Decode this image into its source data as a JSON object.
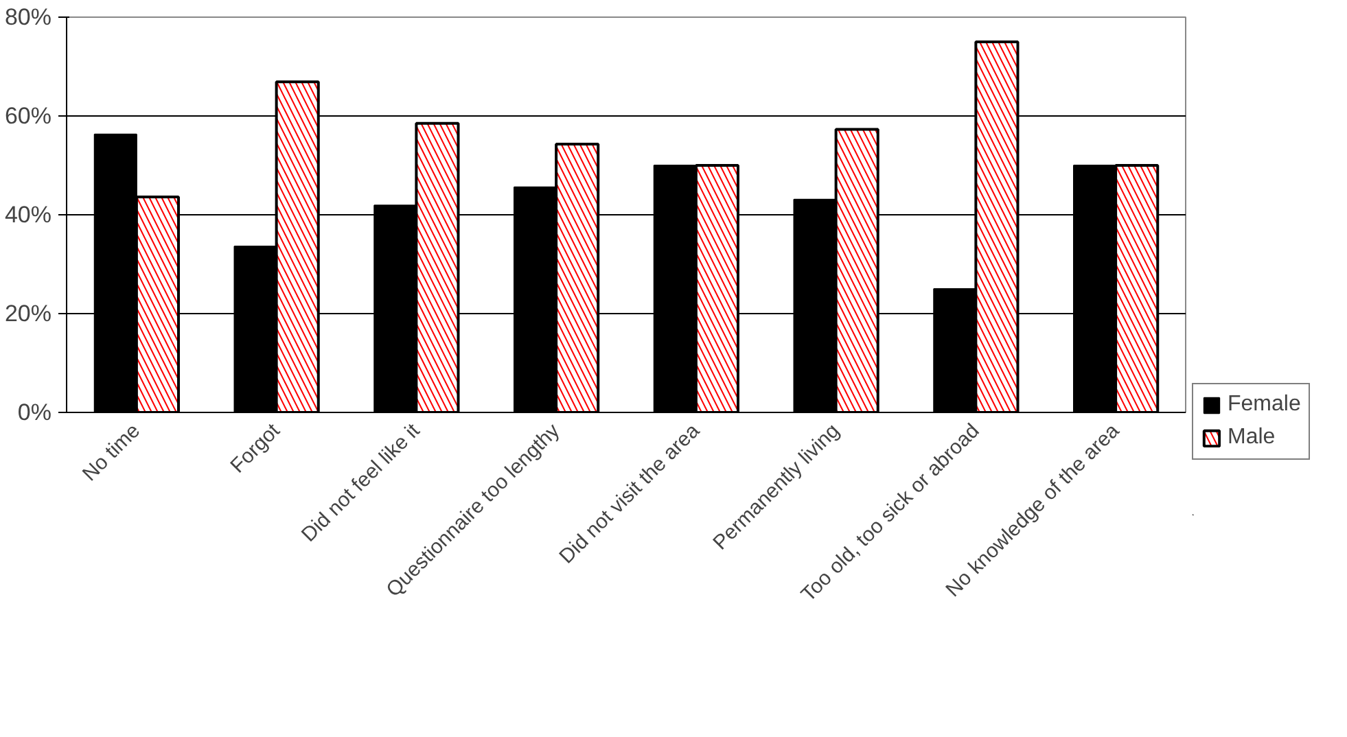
{
  "chart_data": {
    "type": "bar",
    "categories": [
      "No time",
      "Forgot",
      "Did not feel like it",
      "Questionnaire too lengthy",
      "Did not visit the area",
      "Permanently living",
      "Too old, too sick or abroad",
      "No knowledge of the area"
    ],
    "series": [
      {
        "name": "Female",
        "color": "#000000",
        "values": [
          56.3,
          33.6,
          41.9,
          45.6,
          50,
          43.1,
          25,
          50
        ]
      },
      {
        "name": "Male",
        "color": "#ff0000",
        "values": [
          43.6,
          66.9,
          58.5,
          54.3,
          50,
          57.3,
          75,
          50
        ]
      }
    ],
    "ylim": [
      0,
      80
    ],
    "yticks": [
      {
        "value": 0,
        "label": "0%"
      },
      {
        "value": 20,
        "label": "20%"
      },
      {
        "value": 40,
        "label": "40%"
      },
      {
        "value": 60,
        "label": "60%"
      },
      {
        "value": 80,
        "label": "80%"
      }
    ],
    "grid": "y",
    "legend": "bottom right"
  }
}
